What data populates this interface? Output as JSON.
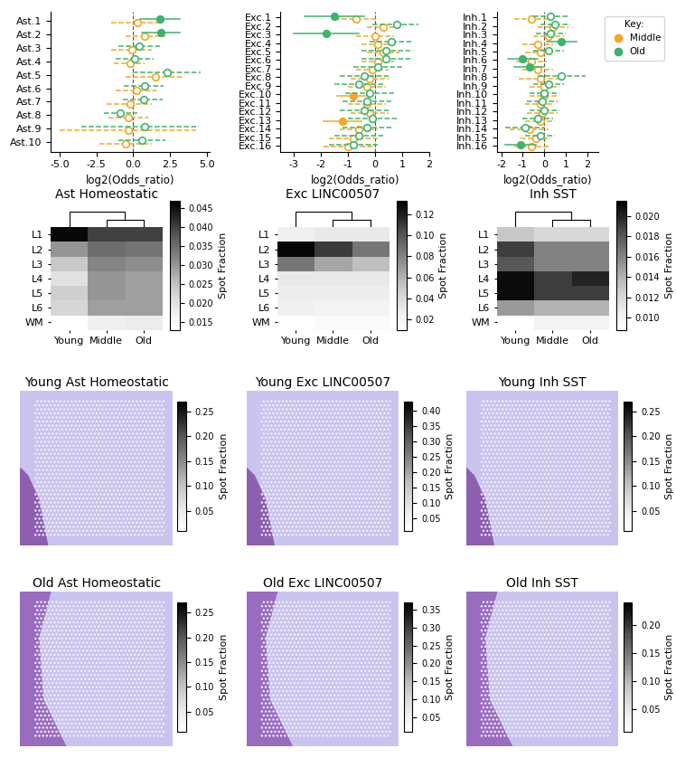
{
  "chart_data": [
    {
      "type": "forest",
      "xlabel": "log2(Odds_ratio)",
      "categories": [
        "Ast.1",
        "Ast.2",
        "Ast.3",
        "Ast.4",
        "Ast.5",
        "Ast.6",
        "Ast.7",
        "Ast.8",
        "Ast.9",
        "Ast.10"
      ],
      "xlim": [
        -5.6,
        5.2
      ],
      "xticks": [
        {
          "value": -5,
          "label": "-5.0"
        },
        {
          "value": -2.5,
          "label": "-2.5"
        },
        {
          "value": 0,
          "label": "0.0"
        },
        {
          "value": 2.5,
          "label": "2.5"
        },
        {
          "value": 5,
          "label": "5.0"
        }
      ],
      "series": [
        {
          "name": "Middle",
          "color": "#f5a623",
          "marker": "circle",
          "values": [
            0.3,
            0.8,
            -0.1,
            -0.2,
            1.5,
            0.2,
            -0.2,
            -0.3,
            -0.3,
            -0.5
          ],
          "ci_low": [
            -1.5,
            -0.5,
            -1.5,
            -1.3,
            -0.5,
            -1.2,
            -1.8,
            -1.7,
            -5.0,
            -2.3
          ],
          "ci_high": [
            2.0,
            2.2,
            1.3,
            0.8,
            3.5,
            1.6,
            1.3,
            1.0,
            4.3,
            1.3
          ],
          "filled": [
            false,
            false,
            false,
            false,
            false,
            false,
            false,
            false,
            false,
            false
          ]
        },
        {
          "name": "Old",
          "color": "#3cb46e",
          "marker": "circle",
          "values": [
            1.8,
            1.9,
            0.4,
            0.1,
            2.3,
            0.8,
            0.7,
            -0.9,
            0.8,
            0.6
          ],
          "ci_low": [
            0.5,
            0.6,
            -1.0,
            -1.2,
            0.0,
            -0.6,
            -0.7,
            -2.0,
            -3.5,
            -1.0
          ],
          "ci_high": [
            3.2,
            3.2,
            1.8,
            1.4,
            4.6,
            2.1,
            2.0,
            0.3,
            4.5,
            2.2
          ],
          "filled": [
            true,
            true,
            false,
            false,
            false,
            false,
            false,
            false,
            false,
            false
          ]
        }
      ]
    },
    {
      "type": "forest",
      "xlabel": "log2(Odds_ratio)",
      "categories": [
        "Exc.1",
        "Exc.2",
        "Exc.3",
        "Exc.4",
        "Exc.5",
        "Exc.6",
        "Exc.7",
        "Exc.8",
        "Exc.9",
        "Exc.10",
        "Exc.11",
        "Exc.12",
        "Exc.13",
        "Exc.14",
        "Exc.15",
        "Exc.16"
      ],
      "xlim": [
        -3.5,
        2.0
      ],
      "xticks": [
        -3,
        -2,
        -1,
        0,
        1,
        2
      ],
      "series": [
        {
          "name": "Middle",
          "color": "#f5a623",
          "marker": "circle",
          "values": [
            -0.7,
            0.3,
            0.0,
            0.1,
            0.3,
            0.1,
            -0.1,
            -0.2,
            -0.3,
            -0.8,
            -0.3,
            -0.2,
            -1.2,
            -0.6,
            -0.8,
            -1.0
          ],
          "ci_low": [
            -1.5,
            -0.3,
            -0.7,
            -0.5,
            -0.3,
            -0.5,
            -0.7,
            -0.9,
            -1.0,
            -1.4,
            -1.0,
            -0.9,
            -1.9,
            -1.3,
            -1.7,
            -1.9
          ],
          "ci_high": [
            0.1,
            0.9,
            0.7,
            0.7,
            0.9,
            0.7,
            0.5,
            0.5,
            0.4,
            -0.2,
            0.4,
            0.5,
            -0.5,
            0.1,
            0.1,
            0.0
          ],
          "filled": [
            false,
            false,
            false,
            false,
            false,
            false,
            false,
            false,
            false,
            true,
            false,
            false,
            true,
            false,
            false,
            false
          ]
        },
        {
          "name": "Old",
          "color": "#3cb46e",
          "marker": "circle",
          "values": [
            -1.5,
            0.8,
            -1.8,
            0.6,
            0.4,
            0.4,
            0.1,
            -0.4,
            -0.6,
            -0.2,
            -0.3,
            -0.4,
            -0.1,
            -0.3,
            -0.6,
            -0.8
          ],
          "ci_low": [
            -2.6,
            -0.1,
            -3.0,
            -0.2,
            -0.5,
            -0.5,
            -0.8,
            -1.3,
            -1.5,
            -1.1,
            -1.2,
            -1.3,
            -1.0,
            -1.2,
            -1.5,
            -1.7
          ],
          "ci_high": [
            -0.4,
            1.6,
            -0.6,
            1.4,
            1.3,
            1.3,
            1.0,
            0.5,
            0.3,
            0.7,
            0.6,
            0.5,
            0.8,
            0.6,
            0.3,
            0.1
          ],
          "filled": [
            true,
            false,
            true,
            false,
            false,
            false,
            false,
            false,
            false,
            false,
            false,
            false,
            false,
            false,
            false,
            false
          ]
        }
      ]
    },
    {
      "type": "forest",
      "xlabel": "log2(Odds_ratio)",
      "legend": "upper left",
      "legend_title": "Key:",
      "categories": [
        "Inh.1",
        "Inh.2",
        "Inh.3",
        "Inh.4",
        "Inh.5",
        "Inh.6",
        "Inh.7",
        "Inh.8",
        "Inh.9",
        "Inh.10",
        "Inh.11",
        "Inh.12",
        "Inh.13",
        "Inh.14",
        "Inh.15",
        "Inh.16"
      ],
      "xlim": [
        -2.2,
        2.5
      ],
      "xticks": [
        -2,
        -1,
        0,
        1,
        2
      ],
      "series": [
        {
          "name": "Middle",
          "color": "#f5a623",
          "marker": "circle",
          "values": [
            -0.6,
            0.4,
            0.2,
            -0.3,
            -0.2,
            -0.6,
            -0.3,
            -0.2,
            0.0,
            0.0,
            -0.2,
            -0.1,
            -0.2,
            -0.7,
            -0.4,
            -0.6
          ],
          "ci_low": [
            -1.4,
            -0.3,
            -0.5,
            -1.0,
            -0.9,
            -1.3,
            -1.0,
            -1.2,
            -0.7,
            -0.7,
            -0.9,
            -0.8,
            -0.9,
            -1.6,
            -1.1,
            -1.4
          ],
          "ci_high": [
            0.2,
            1.1,
            0.9,
            0.4,
            0.5,
            0.1,
            0.4,
            0.8,
            0.7,
            0.7,
            0.5,
            0.6,
            0.5,
            0.2,
            0.3,
            0.2
          ],
          "filled": [
            false,
            false,
            false,
            false,
            false,
            false,
            false,
            false,
            false,
            false,
            false,
            false,
            false,
            false,
            false,
            false
          ]
        },
        {
          "name": "Old",
          "color": "#3cb46e",
          "marker": "circle",
          "values": [
            0.3,
            0.5,
            0.3,
            0.8,
            0.2,
            -1.0,
            -0.7,
            0.8,
            0.2,
            0.0,
            -0.1,
            0.0,
            -0.3,
            -0.9,
            -0.2,
            -1.1
          ],
          "ci_low": [
            -0.5,
            -0.2,
            -0.4,
            0.1,
            -0.5,
            -1.7,
            -1.4,
            -0.3,
            -0.5,
            -0.7,
            -0.8,
            -0.7,
            -1.0,
            -1.8,
            -0.9,
            -1.8
          ],
          "ci_high": [
            1.1,
            1.2,
            1.0,
            1.5,
            0.9,
            -0.3,
            -0.05,
            1.9,
            0.9,
            0.7,
            0.6,
            0.7,
            0.4,
            0.0,
            0.5,
            -0.4
          ],
          "filled": [
            false,
            false,
            false,
            true,
            false,
            true,
            true,
            false,
            false,
            false,
            false,
            false,
            false,
            false,
            false,
            true
          ]
        }
      ]
    },
    {
      "type": "heatmap",
      "title": "Ast Homeostatic",
      "rows": [
        "L1",
        "L2",
        "L3",
        "L4",
        "L5",
        "L6",
        "WM"
      ],
      "columns": [
        "Young",
        "Middle",
        "Old"
      ],
      "cells": [
        [
          0.046,
          0.04,
          0.04
        ],
        [
          0.03,
          0.035,
          0.034
        ],
        [
          0.024,
          0.032,
          0.031
        ],
        [
          0.02,
          0.03,
          0.029
        ],
        [
          0.023,
          0.03,
          0.029
        ],
        [
          0.022,
          0.029,
          0.029
        ],
        [
          null,
          0.017,
          0.018
        ]
      ],
      "colorbar_label": "Spot Fraction",
      "colorbar_lim": [
        0.013,
        0.047
      ],
      "colorbar_ticks": [
        0.015,
        {
          "value": 0.02,
          "label": "0.020"
        },
        0.025,
        {
          "value": 0.03,
          "label": "0.030"
        },
        0.035,
        {
          "value": 0.04,
          "label": "0.040"
        },
        0.045
      ]
    },
    {
      "type": "heatmap",
      "title": "Exc LINC00507",
      "rows": [
        "L1",
        "L2",
        "L3",
        "L4",
        "L5",
        "L6",
        "WM"
      ],
      "columns": [
        "Young",
        "Middle",
        "Old"
      ],
      "cells": [
        [
          0.025,
          0.03,
          0.03
        ],
        [
          0.13,
          0.11,
          0.085
        ],
        [
          0.085,
          0.065,
          0.055
        ],
        [
          0.03,
          0.03,
          0.03
        ],
        [
          0.027,
          0.027,
          0.027
        ],
        [
          0.025,
          0.022,
          0.022
        ],
        [
          null,
          0.015,
          0.015
        ]
      ],
      "colorbar_label": "Spot Fraction",
      "colorbar_lim": [
        0.01,
        0.133
      ],
      "colorbar_ticks": [
        {
          "value": 0.02,
          "label": "0.02"
        },
        {
          "value": 0.04,
          "label": "0.04"
        },
        {
          "value": 0.06,
          "label": "0.06"
        },
        {
          "value": 0.08,
          "label": "0.08"
        },
        {
          "value": 0.1,
          "label": "0.10"
        },
        0.12
      ]
    },
    {
      "type": "heatmap",
      "title": "Inh SST",
      "rows": [
        "L1",
        "L2",
        "L3",
        "L4",
        "L5",
        "L6",
        "WM"
      ],
      "columns": [
        "Young",
        "Middle",
        "Old"
      ],
      "cells": [
        [
          0.013,
          0.012,
          0.012
        ],
        [
          0.019,
          0.016,
          0.016
        ],
        [
          0.018,
          0.016,
          0.016
        ],
        [
          0.021,
          0.019,
          0.02
        ],
        [
          0.021,
          0.019,
          0.019
        ],
        [
          0.015,
          0.014,
          0.014
        ],
        [
          null,
          0.01,
          0.01
        ]
      ],
      "colorbar_label": "Spot Fraction",
      "colorbar_lim": [
        0.0088,
        0.0215
      ],
      "colorbar_ticks": [
        {
          "value": 0.01,
          "label": "0.010"
        },
        0.012,
        0.014,
        0.016,
        0.018,
        {
          "value": 0.02,
          "label": "0.020"
        }
      ]
    },
    {
      "type": "spatial",
      "title": "Young Ast Homeostatic",
      "colorbar_label": "Spot Fraction",
      "colorbar_lim": [
        0.01,
        0.27
      ],
      "colorbar_ticks": [
        0.05,
        {
          "value": 0.1,
          "label": "0.10"
        },
        0.15,
        {
          "value": 0.2,
          "label": "0.20"
        },
        0.25
      ]
    },
    {
      "type": "spatial",
      "title": "Young Exc LINC00507",
      "colorbar_label": "Spot Fraction",
      "colorbar_lim": [
        0.01,
        0.43
      ],
      "colorbar_ticks": [
        0.05,
        {
          "value": 0.1,
          "label": "0.10"
        },
        0.15,
        {
          "value": 0.2,
          "label": "0.20"
        },
        0.25,
        {
          "value": 0.3,
          "label": "0.30"
        },
        0.35,
        {
          "value": 0.4,
          "label": "0.40"
        }
      ]
    },
    {
      "type": "spatial",
      "title": "Young Inh SST",
      "colorbar_label": "Spot Fraction",
      "colorbar_lim": [
        0.01,
        0.27
      ],
      "colorbar_ticks": [
        0.05,
        {
          "value": 0.1,
          "label": "0.10"
        },
        0.15,
        {
          "value": 0.2,
          "label": "0.20"
        },
        0.25
      ]
    },
    {
      "type": "spatial",
      "title": "Old Ast Homeostatic",
      "colorbar_label": "Spot Fraction",
      "colorbar_lim": [
        0.01,
        0.27
      ],
      "colorbar_ticks": [
        0.05,
        {
          "value": 0.1,
          "label": "0.10"
        },
        0.15,
        {
          "value": 0.2,
          "label": "0.20"
        },
        0.25
      ]
    },
    {
      "type": "spatial",
      "title": "Old Exc LINC00507",
      "colorbar_label": "Spot Fraction",
      "colorbar_lim": [
        0.01,
        0.37
      ],
      "colorbar_ticks": [
        0.05,
        {
          "value": 0.1,
          "label": "0.10"
        },
        0.15,
        {
          "value": 0.2,
          "label": "0.20"
        },
        0.25,
        {
          "value": 0.3,
          "label": "0.30"
        },
        0.35
      ]
    },
    {
      "type": "spatial",
      "title": "Old Inh SST",
      "colorbar_label": "Spot Fraction",
      "colorbar_lim": [
        0.01,
        0.24
      ],
      "colorbar_ticks": [
        0.05,
        {
          "value": 0.1,
          "label": "0.10"
        },
        0.15,
        {
          "value": 0.2,
          "label": "0.20"
        }
      ]
    }
  ]
}
